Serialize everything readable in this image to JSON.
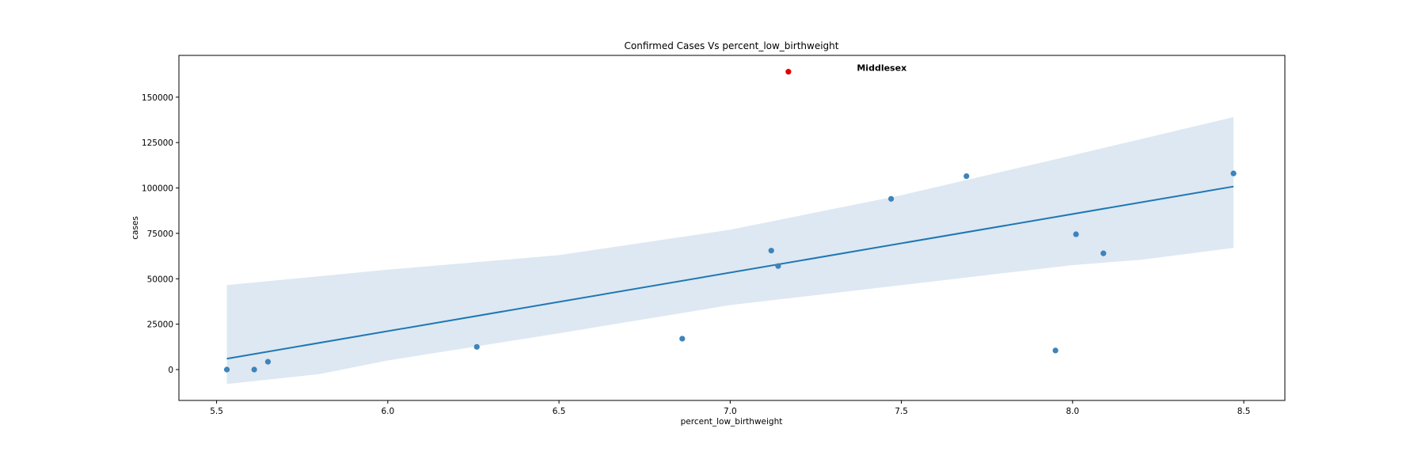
{
  "chart_data": {
    "type": "scatter",
    "title": "Confirmed Cases Vs percent_low_birthweight",
    "xlabel": "percent_low_birthweight",
    "ylabel": "cases",
    "xlim": [
      5.39,
      8.62
    ],
    "ylim": [
      -17000,
      173000
    ],
    "x_ticks": [
      5.5,
      6.0,
      6.5,
      7.0,
      7.5,
      8.0,
      8.5
    ],
    "x_tick_labels": [
      "5.5",
      "6.0",
      "6.5",
      "7.0",
      "7.5",
      "8.0",
      "8.5"
    ],
    "y_ticks": [
      0,
      25000,
      50000,
      75000,
      100000,
      125000,
      150000
    ],
    "y_tick_labels": [
      "0",
      "25000",
      "50000",
      "75000",
      "100000",
      "125000",
      "150000"
    ],
    "grid": false,
    "points": [
      {
        "x": 5.53,
        "y": 0
      },
      {
        "x": 5.61,
        "y": 0
      },
      {
        "x": 5.65,
        "y": 4300
      },
      {
        "x": 6.26,
        "y": 12500
      },
      {
        "x": 6.86,
        "y": 17000
      },
      {
        "x": 7.12,
        "y": 65500
      },
      {
        "x": 7.14,
        "y": 57000
      },
      {
        "x": 7.47,
        "y": 94000
      },
      {
        "x": 7.69,
        "y": 106500
      },
      {
        "x": 7.95,
        "y": 10500
      },
      {
        "x": 8.01,
        "y": 74500
      },
      {
        "x": 8.09,
        "y": 64000
      },
      {
        "x": 8.47,
        "y": 108000
      }
    ],
    "highlight_point": {
      "x": 7.17,
      "y": 164000,
      "label": "Middlesex",
      "label_x": 7.37
    },
    "regression": {
      "x_start": 5.53,
      "y_start": 6000,
      "x_end": 8.47,
      "y_end": 100800,
      "band_lower": [
        {
          "x": 5.53,
          "y": -8000
        },
        {
          "x": 5.8,
          "y": -2500
        },
        {
          "x": 6.0,
          "y": 5000
        },
        {
          "x": 6.5,
          "y": 20000
        },
        {
          "x": 7.0,
          "y": 35500
        },
        {
          "x": 7.5,
          "y": 46500
        },
        {
          "x": 8.0,
          "y": 57500
        },
        {
          "x": 8.2,
          "y": 60500
        },
        {
          "x": 8.47,
          "y": 67000
        }
      ],
      "band_upper": [
        {
          "x": 5.53,
          "y": 46500
        },
        {
          "x": 6.0,
          "y": 55000
        },
        {
          "x": 6.5,
          "y": 63000
        },
        {
          "x": 7.0,
          "y": 77000
        },
        {
          "x": 7.5,
          "y": 96000
        },
        {
          "x": 8.0,
          "y": 118000
        },
        {
          "x": 8.47,
          "y": 139000
        }
      ]
    },
    "colors": {
      "point": "#3e83bb",
      "line": "#1f77b4",
      "band": "#dde8f2",
      "highlight": "#e00000"
    }
  }
}
